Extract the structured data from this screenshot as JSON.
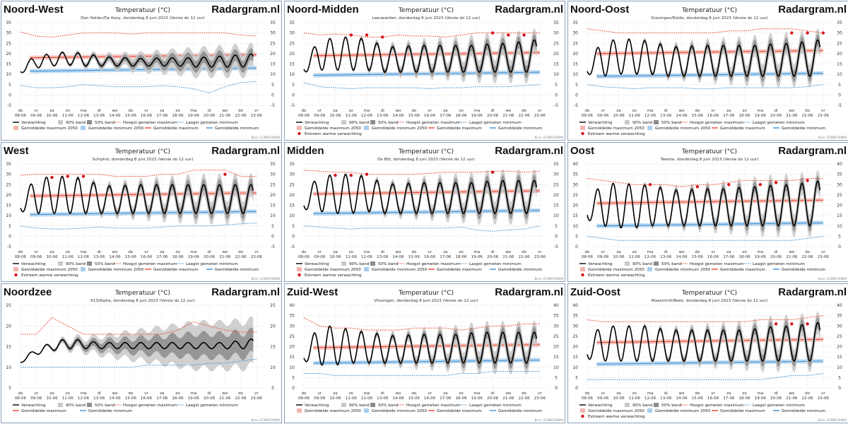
{
  "site": "Radargram.nl",
  "chart_title": "Temperatuur (°C)",
  "source": "Bron: ECMWF/KNMI",
  "days": [
    "do",
    "vr",
    "za",
    "zo",
    "ma",
    "di",
    "wo",
    "do",
    "vr",
    "za",
    "zo",
    "ma",
    "di",
    "wo",
    "do",
    "vr"
  ],
  "dates": [
    "08-06",
    "09-06",
    "10-06",
    "11-06",
    "12-06",
    "13-06",
    "14-06",
    "15-06",
    "16-06",
    "17-06",
    "18-06",
    "19-06",
    "20-06",
    "21-06",
    "22-06",
    "23-06"
  ],
  "legend": {
    "forecast": "Verwachting",
    "band90": "90% band",
    "band50": "50% band",
    "max_hist": "Hoogst gemeten maximum",
    "min_hist": "Laagst gemeten minimum",
    "mean_max": "Gemiddelde maximum",
    "mean_min": "Gemiddelde minimum",
    "mean_max_2050": "Gemiddelde maximum 2050",
    "mean_min_2050": "Gemiddelde minimum 2050",
    "extreme": "Extreem warme verwachting"
  },
  "colors": {
    "forecast": "#000000",
    "band90": "#c8c8c8",
    "band50": "#8c8c8c",
    "max_hist": "#e8442f",
    "mean_max": "#e8442f",
    "max_2050": "#f2b5ad",
    "min_hist": "#3b8fd1",
    "mean_min": "#3b8fd1",
    "min_2050": "#a9cdee",
    "extreme": "#d7141a"
  },
  "chart_data": [
    {
      "type": "line",
      "region": "Noord-West",
      "station": "Den Helder/De Kooy, donderdag 8 juni 2023 (Versie do 12 uur)",
      "ylim": [
        -5,
        35
      ],
      "yticks": [
        -5,
        0,
        5,
        10,
        15,
        20,
        25,
        30,
        35
      ],
      "x": [
        "08-06",
        "09-06",
        "10-06",
        "11-06",
        "12-06",
        "13-06",
        "14-06",
        "15-06",
        "16-06",
        "17-06",
        "18-06",
        "19-06",
        "20-06",
        "21-06",
        "22-06",
        "23-06"
      ],
      "forecast_max": [
        14.5,
        19,
        20,
        21,
        20,
        19,
        18,
        18,
        17.5,
        18,
        18,
        18,
        18.5,
        19,
        19.5
      ],
      "forecast_min": [
        10.5,
        13,
        14,
        14.5,
        14,
        14,
        14,
        14,
        14,
        14,
        14,
        13.5,
        13.5,
        13.5,
        13.5
      ],
      "max_hist": [
        30.5,
        28.5,
        28,
        29,
        30,
        30,
        30,
        29.5,
        30,
        30,
        30,
        30,
        30,
        30,
        29,
        28.5
      ],
      "min_hist": [
        4.5,
        3.5,
        3.5,
        4,
        5,
        4.5,
        4,
        4,
        4,
        4.5,
        4,
        3,
        1,
        4,
        6,
        6.5
      ],
      "mean_max": [
        18,
        18.3,
        18.6,
        18.9,
        19.2,
        19.5
      ],
      "mean_min": [
        11.5,
        11.8,
        12.1,
        12.4,
        12.7,
        13
      ],
      "extreme": [],
      "legend_extreme": false,
      "legend_2050": true
    },
    {
      "type": "line",
      "region": "Noord-Midden",
      "station": "Leeuwarden, donderdag 8 juni 2023 (Versie do 12 uur)",
      "ylim": [
        -5,
        35
      ],
      "yticks": [
        -5,
        0,
        5,
        10,
        15,
        20,
        25,
        30,
        35
      ],
      "x": [
        "08-06",
        "09-06",
        "10-06",
        "11-06",
        "12-06",
        "13-06",
        "14-06",
        "15-06",
        "16-06",
        "17-06",
        "18-06",
        "19-06",
        "20-06",
        "21-06",
        "22-06",
        "23-06"
      ],
      "forecast_max": [
        18,
        26,
        28,
        28,
        27,
        24,
        23,
        24,
        24,
        24,
        24,
        24,
        25,
        25,
        26
      ],
      "forecast_min": [
        11,
        12,
        12,
        12,
        12,
        11,
        11,
        11,
        11,
        11,
        11,
        11,
        11,
        11,
        11
      ],
      "max_hist": [
        30,
        29,
        29.5,
        29,
        28,
        28,
        29,
        28.5,
        28.5,
        28,
        29,
        30,
        30,
        30,
        30,
        30
      ],
      "min_hist": [
        6,
        4,
        3.5,
        3,
        3.5,
        3.5,
        3.5,
        3.5,
        3,
        3.5,
        3.5,
        4,
        4,
        4,
        4.5,
        5
      ],
      "mean_max": [
        19,
        19.3,
        19.6,
        19.9,
        20.2,
        20.5
      ],
      "mean_min": [
        9.5,
        9.8,
        10.1,
        10.4,
        10.7,
        11
      ],
      "extreme": [
        [
          3,
          29
        ],
        [
          4,
          29
        ],
        [
          5,
          28
        ],
        [
          12,
          30
        ],
        [
          13,
          29
        ],
        [
          14,
          29
        ]
      ],
      "legend_extreme": true,
      "legend_2050": true
    },
    {
      "type": "line",
      "region": "Noord-Oost",
      "station": "Groningen/Eelde, donderdag 8 juni 2023 (Versie do 12 uur)",
      "ylim": [
        -5,
        35
      ],
      "yticks": [
        -5,
        0,
        5,
        10,
        15,
        20,
        25,
        30,
        35
      ],
      "x": [
        "08-06",
        "09-06",
        "10-06",
        "11-06",
        "12-06",
        "13-06",
        "14-06",
        "15-06",
        "16-06",
        "17-06",
        "18-06",
        "19-06",
        "20-06",
        "21-06",
        "22-06",
        "23-06"
      ],
      "forecast_max": [
        17,
        26,
        27,
        27,
        26,
        24,
        23,
        24,
        24,
        24,
        24,
        24,
        25,
        25,
        26
      ],
      "forecast_min": [
        10,
        9,
        10,
        10,
        10,
        9,
        9,
        9,
        9,
        9,
        9,
        9,
        9,
        9,
        9
      ],
      "max_hist": [
        32,
        31,
        30,
        30,
        30,
        30,
        30,
        30,
        30,
        31,
        31,
        32,
        32,
        32,
        31,
        30
      ],
      "min_hist": [
        5,
        4,
        3.5,
        3,
        3.5,
        3.5,
        3.5,
        3,
        3,
        3.5,
        3.5,
        3.5,
        3.5,
        3.5,
        4,
        5
      ],
      "mean_max": [
        20,
        20.3,
        20.6,
        20.9,
        21.2,
        21.5
      ],
      "mean_min": [
        9,
        9.3,
        9.6,
        9.9,
        10.2,
        10.5
      ],
      "extreme": [
        [
          13,
          30
        ],
        [
          14,
          30
        ],
        [
          15,
          30
        ]
      ],
      "legend_extreme": true,
      "legend_2050": true
    },
    {
      "type": "line",
      "region": "West",
      "station": "Schiphol, donderdag 8 juni 2023 (Versie do 12 uur)",
      "ylim": [
        -5,
        35
      ],
      "yticks": [
        -5,
        0,
        5,
        10,
        15,
        20,
        25,
        30,
        35
      ],
      "x": [
        "08-06",
        "09-06",
        "10-06",
        "11-06",
        "12-06",
        "13-06",
        "14-06",
        "15-06",
        "16-06",
        "17-06",
        "18-06",
        "19-06",
        "20-06",
        "21-06",
        "22-06",
        "23-06"
      ],
      "forecast_max": [
        20,
        28,
        29,
        29,
        28,
        25,
        24,
        25,
        25,
        25,
        25,
        25,
        25,
        25,
        25
      ],
      "forecast_min": [
        12,
        11,
        11,
        11,
        11,
        11,
        11,
        11,
        11,
        11,
        11,
        11,
        11,
        11,
        11
      ],
      "max_hist": [
        29.5,
        30,
        30,
        30,
        30,
        30,
        29,
        29,
        29,
        30,
        30,
        32,
        32,
        32,
        29,
        29
      ],
      "min_hist": [
        5,
        4,
        3.5,
        3.5,
        4,
        4.5,
        4,
        4,
        4,
        4.5,
        5,
        5,
        5,
        5.5,
        6,
        6.5
      ],
      "mean_max": [
        19.5,
        19.8,
        20.1,
        20.4,
        20.7,
        21
      ],
      "mean_min": [
        10.5,
        10.8,
        11.1,
        11.4,
        11.7,
        12
      ],
      "extreme": [
        [
          2,
          28.5
        ],
        [
          3,
          29
        ],
        [
          4,
          29
        ],
        [
          13,
          30
        ]
      ],
      "legend_extreme": true,
      "legend_2050": true
    },
    {
      "type": "line",
      "region": "Midden",
      "station": "De Bilt, donderdag 8 juni 2023 (Versie do 12 uur)",
      "ylim": [
        -5,
        35
      ],
      "yticks": [
        -5,
        0,
        5,
        10,
        15,
        20,
        25,
        30,
        35
      ],
      "x": [
        "08-06",
        "09-06",
        "10-06",
        "11-06",
        "12-06",
        "13-06",
        "14-06",
        "15-06",
        "16-06",
        "17-06",
        "18-06",
        "19-06",
        "20-06",
        "21-06",
        "22-06",
        "23-06"
      ],
      "forecast_max": [
        22,
        29,
        30,
        30,
        29,
        26,
        25,
        26,
        26,
        26,
        26,
        26,
        27,
        27,
        27
      ],
      "forecast_min": [
        13,
        12,
        11,
        11,
        12,
        11,
        11,
        11,
        11,
        11,
        11,
        11,
        11,
        11,
        11
      ],
      "max_hist": [
        32,
        31.5,
        31,
        31,
        30,
        30,
        30,
        30,
        30.5,
        31,
        31,
        31,
        31.5,
        31.5,
        31,
        31.5
      ],
      "min_hist": [
        5,
        4.5,
        4,
        3.5,
        4,
        4,
        4,
        4,
        4,
        4,
        4.5,
        3,
        2.5,
        3,
        3.5,
        5
      ],
      "mean_max": [
        20.5,
        20.8,
        21.1,
        21.4,
        21.7,
        22
      ],
      "mean_min": [
        11,
        11.3,
        11.6,
        11.9,
        12.2,
        12.5
      ],
      "extreme": [
        [
          2,
          29.5
        ],
        [
          3,
          29.5
        ],
        [
          4,
          30
        ],
        [
          12,
          31
        ]
      ],
      "legend_extreme": true,
      "legend_2050": true
    },
    {
      "type": "line",
      "region": "Oost",
      "station": "Twente, donderdag 8 juni 2023 (Versie do 12 uur)",
      "ylim": [
        0,
        40
      ],
      "yticks": [
        0,
        5,
        10,
        15,
        20,
        25,
        30,
        35,
        40
      ],
      "x": [
        "08-06",
        "09-06",
        "10-06",
        "11-06",
        "12-06",
        "13-06",
        "14-06",
        "15-06",
        "16-06",
        "17-06",
        "18-06",
        "19-06",
        "20-06",
        "21-06",
        "22-06",
        "23-06"
      ],
      "forecast_max": [
        24,
        30,
        31,
        30,
        30,
        28,
        27,
        28,
        28,
        28,
        29,
        29,
        30,
        30,
        31
      ],
      "forecast_min": [
        13,
        10,
        9,
        9,
        10,
        10,
        10,
        10,
        10,
        10,
        10,
        10,
        10,
        10,
        10
      ],
      "max_hist": [
        33,
        32,
        31,
        30,
        30,
        30,
        29,
        30,
        30,
        31,
        32,
        32,
        32,
        32,
        33,
        33
      ],
      "min_hist": [
        5,
        4,
        3,
        3,
        3,
        3,
        3,
        3,
        3,
        3,
        3,
        3,
        3,
        3,
        4,
        5
      ],
      "mean_max": [
        21,
        21.3,
        21.6,
        21.9,
        22.2,
        22.5
      ],
      "mean_min": [
        10,
        10.3,
        10.6,
        10.9,
        11.2,
        11.5
      ],
      "extreme": [
        [
          4,
          30
        ],
        [
          7,
          29
        ],
        [
          9,
          30
        ],
        [
          11,
          30
        ],
        [
          12,
          31
        ],
        [
          14,
          32
        ]
      ],
      "legend_extreme": true,
      "legend_2050": true
    },
    {
      "type": "line",
      "region": "Noordzee",
      "station": "K13/Alpha, donderdag 8 juni 2023 (Versie do 12 uur)",
      "ylim": [
        5,
        25
      ],
      "yticks": [
        5,
        10,
        15,
        20,
        25
      ],
      "x": [
        "08-06",
        "09-06",
        "10-06",
        "11-06",
        "12-06",
        "13-06",
        "14-06",
        "15-06",
        "16-06",
        "17-06",
        "18-06",
        "19-06",
        "20-06",
        "21-06",
        "22-06",
        "23-06"
      ],
      "forecast_max": [
        12,
        14.5,
        16,
        17,
        16.5,
        16,
        16,
        16,
        16,
        16,
        16,
        16,
        16,
        16,
        16.5
      ],
      "forecast_min": [
        11,
        13,
        14,
        14.5,
        14.5,
        14.5,
        14.5,
        14.5,
        14.5,
        14.5,
        14.5,
        14.5,
        14.5,
        14.5,
        14.5
      ],
      "max_hist": [
        18,
        18,
        22,
        20,
        18,
        18,
        18,
        18,
        18,
        18,
        19,
        21,
        20,
        19,
        18.5,
        18.5
      ],
      "min_hist": [
        10,
        10,
        10,
        10,
        10,
        10,
        10,
        10,
        10.5,
        10.5,
        10.5,
        10.5,
        11,
        11,
        11.5,
        12
      ],
      "mean_max": [],
      "mean_min": [],
      "extreme": [],
      "legend_extreme": false,
      "legend_2050": false
    },
    {
      "type": "line",
      "region": "Zuid-West",
      "station": "Vlissingen, donderdag 8 juni 2023 (Versie do 12 uur)",
      "ylim": [
        0,
        40
      ],
      "yticks": [
        0,
        5,
        10,
        15,
        20,
        25,
        30,
        35,
        40
      ],
      "x": [
        "08-06",
        "09-06",
        "10-06",
        "11-06",
        "12-06",
        "13-06",
        "14-06",
        "15-06",
        "16-06",
        "17-06",
        "18-06",
        "19-06",
        "20-06",
        "21-06",
        "22-06",
        "23-06"
      ],
      "forecast_max": [
        20,
        30,
        30,
        28,
        27,
        26,
        25,
        26,
        26,
        26,
        26,
        27,
        27,
        27,
        27
      ],
      "forecast_min": [
        13,
        11,
        11,
        12,
        12,
        12,
        12,
        12,
        12,
        12,
        12,
        12,
        12,
        12,
        12
      ],
      "max_hist": [
        34,
        30,
        29,
        29,
        28,
        28,
        28,
        29,
        29,
        29,
        28,
        29,
        30,
        30,
        31,
        31
      ],
      "min_hist": [
        7,
        7,
        6,
        6,
        6,
        6,
        6,
        6,
        6,
        6,
        7,
        7,
        8,
        8,
        8,
        8
      ],
      "mean_max": [
        19.5,
        19.8,
        20.1,
        20.4,
        20.7,
        21
      ],
      "mean_min": [
        12,
        12.3,
        12.6,
        12.9,
        13.2,
        13.5
      ],
      "extreme": [],
      "legend_extreme": false,
      "legend_2050": true
    },
    {
      "type": "line",
      "region": "Zuid-Oost",
      "station": "Maastricht/Beek, donderdag 8 juni 2023 (Versie do 12 uur)",
      "ylim": [
        0,
        40
      ],
      "yticks": [
        0,
        5,
        10,
        15,
        20,
        25,
        30,
        35,
        40
      ],
      "x": [
        "08-06",
        "09-06",
        "10-06",
        "11-06",
        "12-06",
        "13-06",
        "14-06",
        "15-06",
        "16-06",
        "17-06",
        "18-06",
        "19-06",
        "20-06",
        "21-06",
        "22-06",
        "23-06"
      ],
      "forecast_max": [
        25,
        30,
        30,
        30,
        30,
        28,
        28,
        28,
        28,
        28,
        28,
        29,
        30,
        30,
        31
      ],
      "forecast_min": [
        14,
        13,
        13,
        13,
        13,
        13,
        13,
        13,
        13,
        13,
        13,
        13,
        13,
        13,
        13
      ],
      "max_hist": [
        33,
        32,
        32,
        32,
        32,
        32,
        32,
        32,
        32,
        32,
        32,
        33,
        33,
        33,
        34,
        35
      ],
      "min_hist": [
        4,
        4,
        4,
        4,
        4,
        4,
        4,
        4,
        4,
        4,
        4,
        4,
        5,
        6,
        6,
        7
      ],
      "mean_max": [
        22,
        22.3,
        22.6,
        22.9,
        23.2,
        23.5
      ],
      "mean_min": [
        11.5,
        11.8,
        12.1,
        12.4,
        12.7,
        13
      ],
      "extreme": [
        [
          12,
          31
        ],
        [
          13,
          31
        ],
        [
          14,
          31
        ]
      ],
      "legend_extreme": true,
      "legend_2050": true
    }
  ]
}
